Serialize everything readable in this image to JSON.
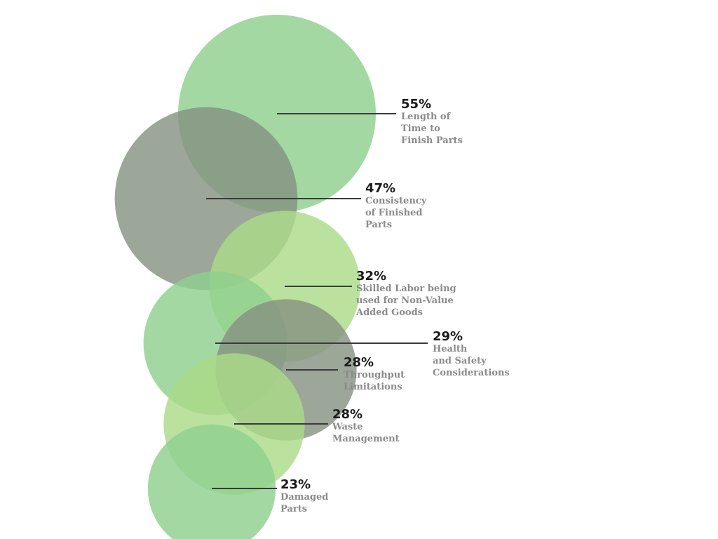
{
  "chart_data": {
    "type": "bubble",
    "title": "",
    "unit": "%",
    "series": [
      {
        "value": 55,
        "value_label": "55%",
        "label_lines": [
          "Length of",
          "Time to",
          "Finish Parts"
        ],
        "color": "#8fd08f"
      },
      {
        "value": 47,
        "value_label": "47%",
        "label_lines": [
          "Consistency",
          "of Finished",
          "Parts"
        ],
        "color": "#869383"
      },
      {
        "value": 32,
        "value_label": "32%",
        "label_lines": [
          "Skilled Labor being",
          "used for Non-Value",
          "Added Goods"
        ],
        "color": "#abdb88"
      },
      {
        "value": 29,
        "value_label": "29%",
        "label_lines": [
          "Health",
          "and Safety",
          "Considerations"
        ],
        "color": "#8fd08f"
      },
      {
        "value": 28,
        "value_label": "28%",
        "label_lines": [
          "Throughput",
          "Limitations"
        ],
        "color": "#869383"
      },
      {
        "value": 28,
        "value_label": "28%",
        "label_lines": [
          "Waste",
          "Management"
        ],
        "color": "#abdb88"
      },
      {
        "value": 23,
        "value_label": "23%",
        "label_lines": [
          "Damaged",
          "Parts"
        ],
        "color": "#8fd08f"
      }
    ]
  }
}
